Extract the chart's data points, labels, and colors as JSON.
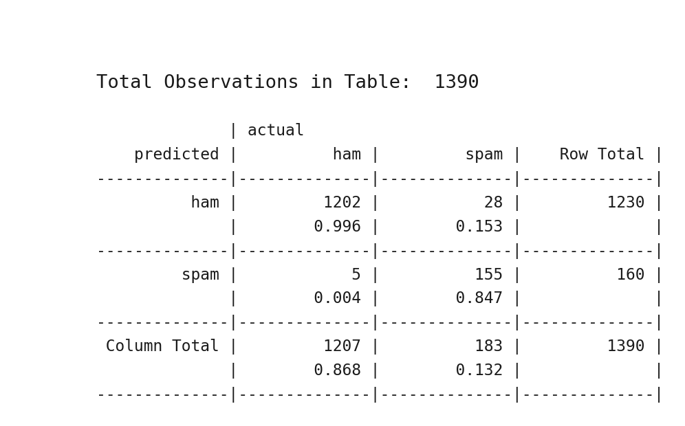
{
  "bg_color": "#ffffff",
  "text_color": "#1a1a1a",
  "font_family": "monospace",
  "title_fontsize": 19.5,
  "table_fontsize": 16.5,
  "title": "Total Observations in Table:  1390",
  "table_lines": [
    "              | actual",
    "    predicted |          ham |         spam |    Row Total |",
    "--------------|--------------|--------------|--------------|",
    "          ham |         1202 |           28 |         1230 |",
    "              |        0.996 |        0.153 |              |",
    "--------------|--------------|--------------|--------------|",
    "         spam |            5 |          155 |          160 |",
    "              |        0.004 |        0.847 |              |",
    "--------------|--------------|--------------|--------------|",
    " Column Total |         1207 |          183 |         1390 |",
    "              |        0.868 |        0.132 |              |",
    "--------------|--------------|--------------|--------------|"
  ]
}
